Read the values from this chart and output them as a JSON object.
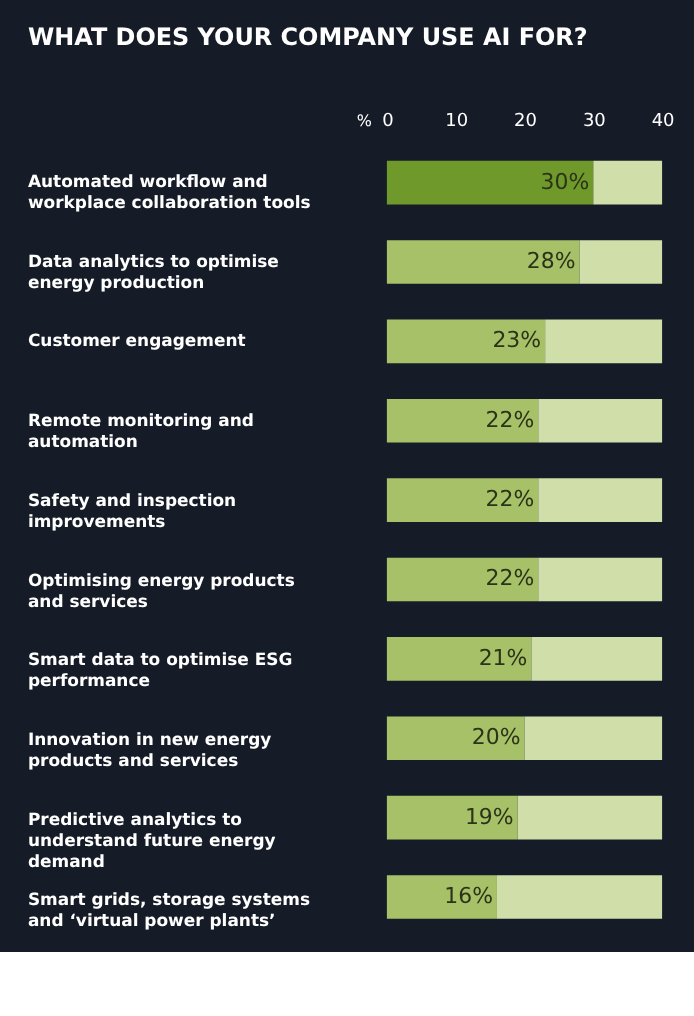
{
  "chart_data": {
    "type": "bar",
    "orientation": "horizontal",
    "stacked": true,
    "title": "WHAT DOES YOUR COMPANY USE AI FOR?",
    "xlabel": "%",
    "categories": [
      "Automated workflow and workplace collaboration tools",
      "Data analytics to optimise energy production",
      "Customer engagement",
      "Remote monitoring and automation",
      "Safety and inspection improvements",
      "Optimising energy products and services",
      "Smart data to optimise ESG performance",
      "Innovation in new energy products and services",
      "Predictive analytics to understand future energy demand",
      "Smart grids, storage systems and ‘virtual power plants’"
    ],
    "series": [
      {
        "values": [
          30,
          28,
          23,
          22,
          22,
          22,
          21,
          20,
          19,
          16
        ],
        "value_labels": [
          "30%",
          "28%",
          "23%",
          "22%",
          "22%",
          "22%",
          "21%",
          "20%",
          "19%",
          "16%"
        ],
        "colors": [
          "#6f9a2b",
          "#a7c168",
          "#a7c168",
          "#a7c168",
          "#a7c168",
          "#a7c168",
          "#a7c168",
          "#a7c168",
          "#a7c168",
          "#a7c168"
        ]
      },
      {
        "color": "#d0deaa",
        "values": [
          10,
          12,
          17,
          18,
          18,
          18,
          19,
          20,
          21,
          24
        ]
      }
    ],
    "xlim": [
      0,
      40
    ],
    "xticks": [
      0,
      10,
      20,
      30,
      40
    ],
    "grid": false,
    "legend": false
  }
}
